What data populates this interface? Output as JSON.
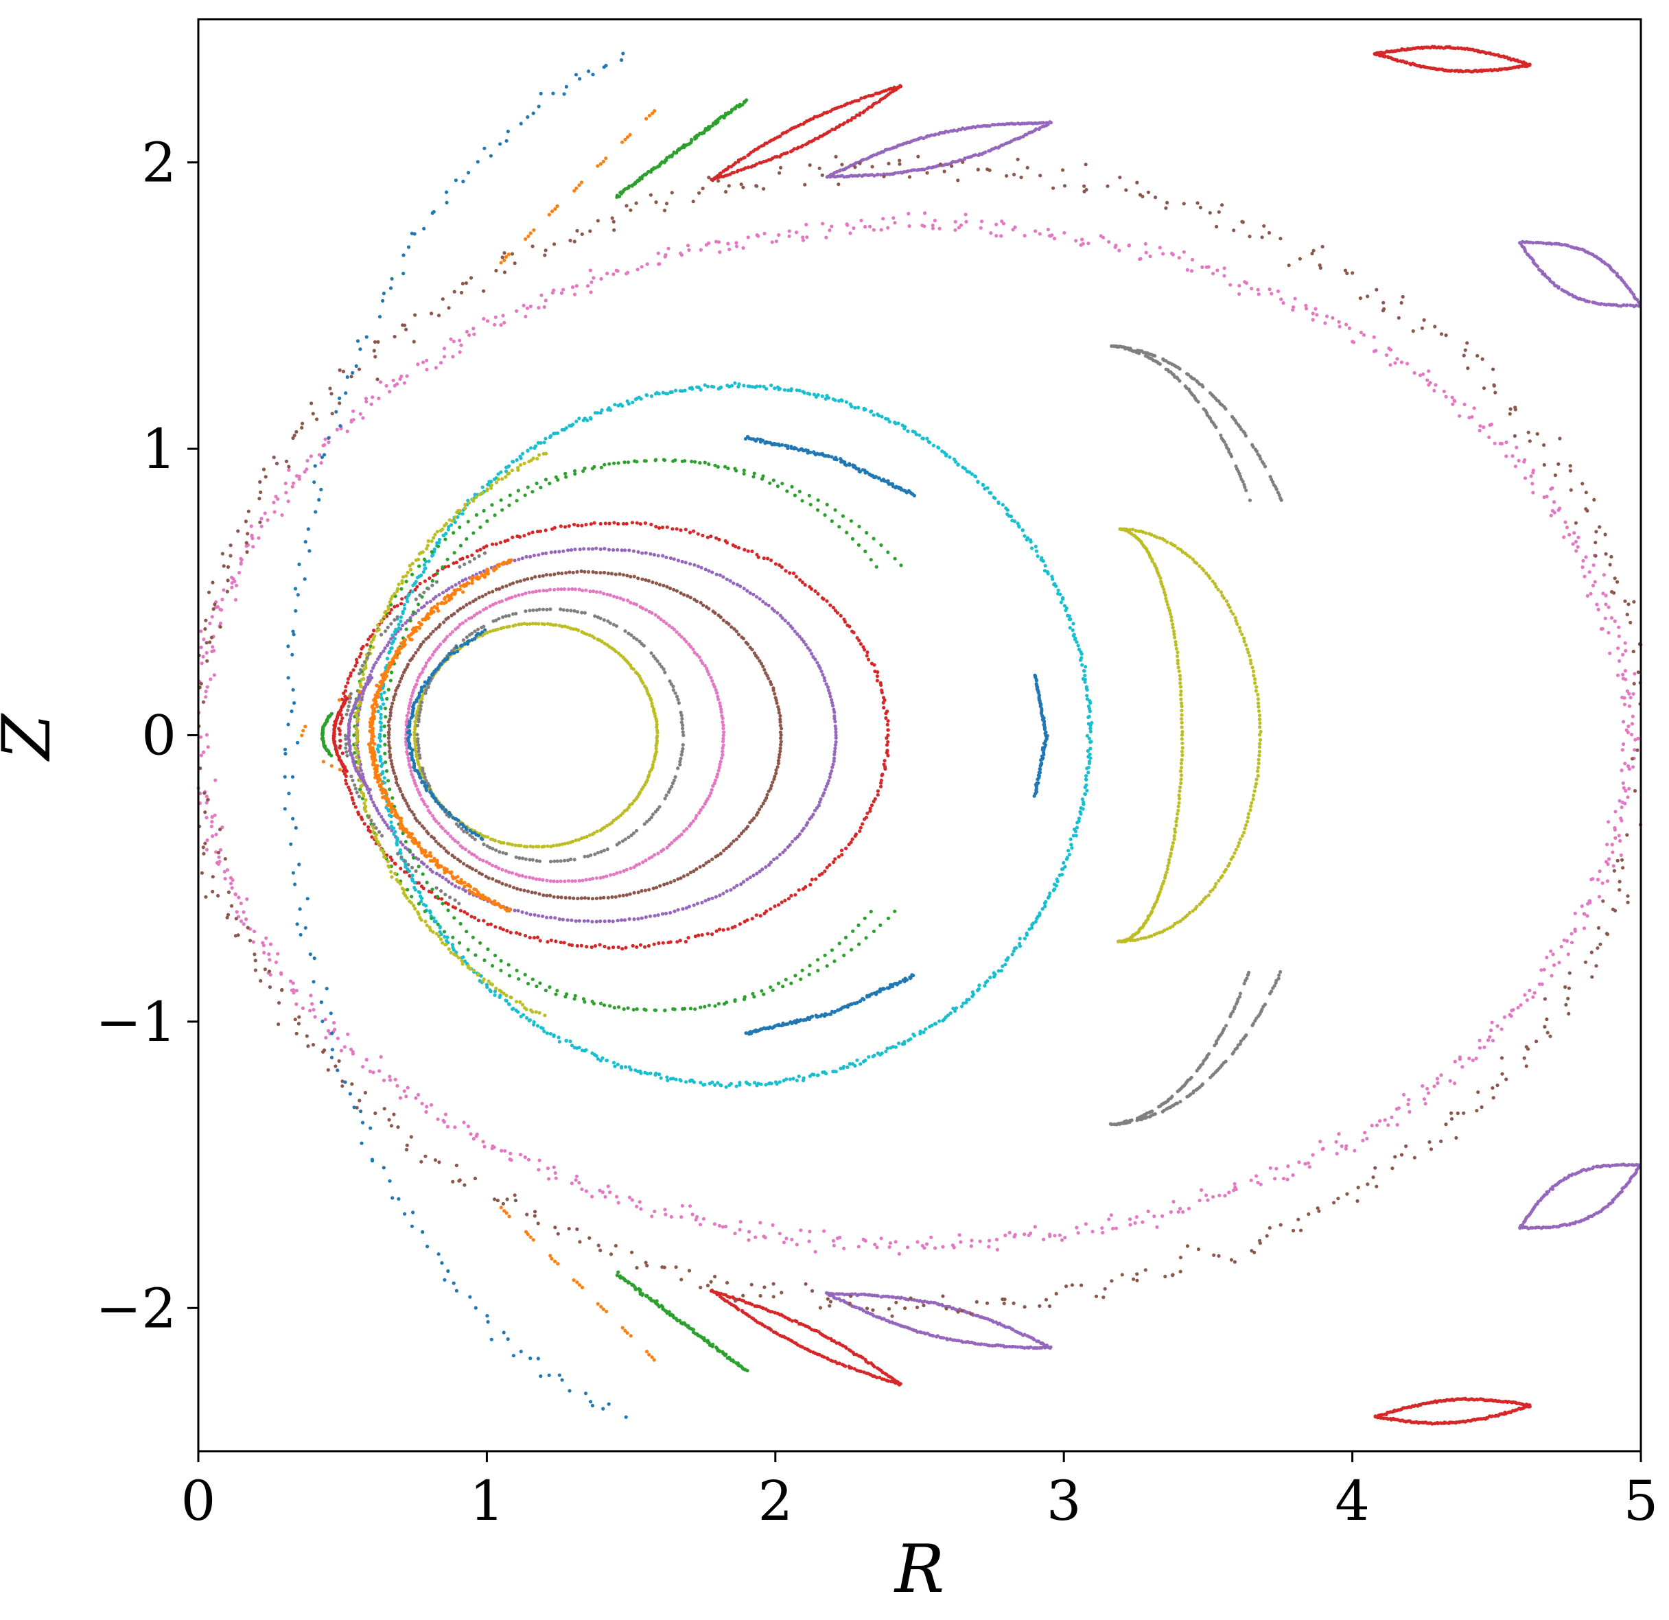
{
  "chart_data": {
    "type": "scatter",
    "title": "",
    "xlabel": "R",
    "ylabel": "Z",
    "xlim": [
      0,
      5
    ],
    "ylim": [
      -2.5,
      2.5
    ],
    "xticks": [
      0,
      1,
      2,
      3,
      4,
      5
    ],
    "yticks": [
      -2,
      -1,
      0,
      1,
      2
    ],
    "xtick_labels": [
      "0",
      "1",
      "2",
      "3",
      "4",
      "5"
    ],
    "ytick_labels": [
      "−2",
      "−1",
      "0",
      "1",
      "2"
    ],
    "grid": false,
    "legend": "none",
    "marker_size": "small dots",
    "palette": {
      "blue": "#1f77b4",
      "orange": "#ff7f0e",
      "green": "#2ca02c",
      "red": "#d62728",
      "purple": "#9467bd",
      "brown": "#8c564b",
      "pink": "#e377c2",
      "gray": "#7f7f7f",
      "olive": "#bcbd22",
      "cyan": "#17becf"
    },
    "series": [
      {
        "color": "#bcbd22",
        "kind": "ellipse",
        "c": [
          1.17,
          0.0
        ],
        "r": [
          0.42,
          0.39
        ],
        "deg": [
          0,
          360
        ],
        "n": 260
      },
      {
        "color": "#7f7f7f",
        "kind": "ellipse",
        "c": [
          1.22,
          0.0
        ],
        "r": [
          0.46,
          0.44
        ],
        "deg": [
          0,
          360
        ],
        "n": 240,
        "dash": [
          8,
          2
        ]
      },
      {
        "color": "#e377c2",
        "kind": "ellipse",
        "c": [
          1.27,
          0.0
        ],
        "r": [
          0.55,
          0.51
        ],
        "deg": [
          0,
          360
        ],
        "n": 280
      },
      {
        "color": "#8c564b",
        "kind": "ellipse",
        "c": [
          1.34,
          0.0
        ],
        "r": [
          0.68,
          0.57
        ],
        "deg": [
          0,
          360
        ],
        "n": 320
      },
      {
        "color": "#9467bd",
        "kind": "ellipse",
        "c": [
          1.38,
          0.0
        ],
        "r": [
          0.83,
          0.65
        ],
        "deg": [
          0,
          360
        ],
        "n": 360
      },
      {
        "color": "#d62728",
        "kind": "ellipse",
        "c": [
          1.44,
          0.0
        ],
        "r": [
          0.95,
          0.74
        ],
        "deg": [
          0,
          360
        ],
        "n": 380,
        "jitter": 0.008
      },
      {
        "color": "#17becf",
        "kind": "ellipse",
        "c": [
          1.86,
          0.0
        ],
        "r": [
          1.23,
          1.22
        ],
        "deg": [
          0,
          360
        ],
        "n": 760,
        "jitter": 0.012
      },
      {
        "color": "#2ca02c",
        "kind": "crescent",
        "c": [
          1.6,
          0.0
        ],
        "r": [
          1.06,
          0.96
        ],
        "deg": [
          38,
          322
        ],
        "inner": 0.9,
        "n": 300,
        "jitter": 0.004
      },
      {
        "color": "#bcbd22",
        "kind": "ellipse",
        "c": [
          1.86,
          0.0
        ],
        "r": [
          1.31,
          1.14
        ],
        "deg": [
          120,
          240
        ],
        "n": 220,
        "jitter": 0.01
      },
      {
        "color": "#1f77b4",
        "kind": "polyline",
        "pts": [
          [
            1.9,
            1.04
          ],
          [
            2.2,
            0.97
          ],
          [
            2.48,
            0.84
          ]
        ],
        "n": 120,
        "jitter": 0.008
      },
      {
        "color": "#1f77b4",
        "kind": "polyline",
        "pts": [
          [
            1.9,
            -1.04
          ],
          [
            2.2,
            -0.97
          ],
          [
            2.48,
            -0.84
          ]
        ],
        "n": 120,
        "jitter": 0.008
      },
      {
        "color": "#1f77b4",
        "kind": "ellipse",
        "c": [
          1.86,
          0.0
        ],
        "r": [
          1.13,
          0.57
        ],
        "deg": [
          140,
          220
        ],
        "n": 130,
        "jitter": 0.008
      },
      {
        "color": "#1f77b4",
        "kind": "polyline",
        "pts": [
          [
            2.9,
            0.21
          ],
          [
            2.94,
            0.0
          ],
          [
            2.9,
            -0.21
          ]
        ],
        "n": 80,
        "jitter": 0.006
      },
      {
        "color": "#ff7f0e",
        "kind": "ellipse",
        "c": [
          1.86,
          0.0
        ],
        "r": [
          1.26,
          0.78
        ],
        "deg": [
          128,
          232
        ],
        "n": 400,
        "jitter": 0.014
      },
      {
        "color": "#bcbd22",
        "kind": "crescent",
        "c": [
          3.19,
          0.0
        ],
        "r": [
          0.49,
          0.72
        ],
        "deg": [
          -90,
          90
        ],
        "inner": 0.45,
        "n": 320
      },
      {
        "color": "#7f7f7f",
        "kind": "crescent",
        "c": [
          3.14,
          0.0
        ],
        "r": [
          0.77,
          1.36
        ],
        "deg": [
          37,
          88
        ],
        "inner": 0.82,
        "n": 200,
        "dash": [
          10,
          3
        ]
      },
      {
        "color": "#7f7f7f",
        "kind": "crescent",
        "c": [
          3.14,
          0.0
        ],
        "r": [
          0.77,
          1.36
        ],
        "deg": [
          -88,
          -37
        ],
        "inner": 0.82,
        "n": 200,
        "dash": [
          10,
          3
        ]
      },
      {
        "color": "#9467bd",
        "kind": "lens",
        "a": [
          2.18,
          1.95
        ],
        "b": [
          2.96,
          2.14
        ],
        "w": 0.055,
        "n": 220
      },
      {
        "color": "#9467bd",
        "kind": "lens",
        "a": [
          2.18,
          -1.95
        ],
        "b": [
          2.96,
          -2.14
        ],
        "w": 0.055,
        "n": 220
      },
      {
        "color": "#d62728",
        "kind": "lens",
        "a": [
          1.78,
          1.94
        ],
        "b": [
          2.44,
          2.27
        ],
        "w": 0.035,
        "n": 180
      },
      {
        "color": "#d62728",
        "kind": "lens",
        "a": [
          1.78,
          -1.94
        ],
        "b": [
          2.44,
          -2.27
        ],
        "w": 0.035,
        "n": 180
      },
      {
        "color": "#d62728",
        "kind": "lens",
        "a": [
          4.08,
          2.38
        ],
        "b": [
          4.62,
          2.34
        ],
        "w": 0.04,
        "n": 200
      },
      {
        "color": "#d62728",
        "kind": "lens",
        "a": [
          4.08,
          -2.38
        ],
        "b": [
          4.62,
          -2.34
        ],
        "w": 0.04,
        "n": 200
      },
      {
        "color": "#9467bd",
        "kind": "lens",
        "a": [
          4.58,
          1.72
        ],
        "b": [
          5.0,
          1.5
        ],
        "w": 0.08,
        "n": 140
      },
      {
        "color": "#9467bd",
        "kind": "lens",
        "a": [
          4.58,
          -1.72
        ],
        "b": [
          5.0,
          -1.5
        ],
        "w": 0.08,
        "n": 140
      },
      {
        "color": "#2ca02c",
        "kind": "polyline",
        "pts": [
          [
            1.45,
            1.88
          ],
          [
            1.9,
            2.22
          ]
        ],
        "n": 110,
        "jitter": 0.008
      },
      {
        "color": "#2ca02c",
        "kind": "polyline",
        "pts": [
          [
            1.45,
            -1.88
          ],
          [
            1.9,
            -2.22
          ]
        ],
        "n": 110,
        "jitter": 0.008
      },
      {
        "color": "#ff7f0e",
        "kind": "polyline",
        "pts": [
          [
            1.05,
            1.65
          ],
          [
            1.6,
            2.2
          ]
        ],
        "n": 60,
        "dash": [
          4,
          5
        ]
      },
      {
        "color": "#ff7f0e",
        "kind": "polyline",
        "pts": [
          [
            1.05,
            -1.65
          ],
          [
            1.6,
            -2.2
          ]
        ],
        "n": 60,
        "dash": [
          4,
          5
        ]
      },
      {
        "color": "#e377c2",
        "kind": "ellipse",
        "c": [
          2.48,
          0.0
        ],
        "r": [
          2.48,
          1.78
        ],
        "deg": [
          0,
          360
        ],
        "n": 900,
        "jitter": 0.05
      },
      {
        "color": "#8c564b",
        "kind": "ellipse",
        "c": [
          2.5,
          0.0
        ],
        "r": [
          2.52,
          1.99
        ],
        "deg": [
          0,
          360
        ],
        "n": 560,
        "jitter": 0.07
      },
      {
        "color": "#1f77b4",
        "kind": "ellipse",
        "c": [
          1.86,
          0.0
        ],
        "r": [
          1.55,
          2.45
        ],
        "deg": [
          104,
          256
        ],
        "n": 150,
        "jitter": 0.04
      },
      {
        "color": "#d62728",
        "kind": "ellipse",
        "c": [
          1.86,
          0.0
        ],
        "r": [
          1.39,
          0.5
        ],
        "deg": [
          165,
          195
        ],
        "n": 60,
        "jitter": 0.004
      },
      {
        "color": "#9467bd",
        "kind": "ellipse",
        "c": [
          1.86,
          0.0
        ],
        "r": [
          1.34,
          0.58
        ],
        "deg": [
          160,
          200
        ],
        "n": 60,
        "jitter": 0.004
      },
      {
        "color": "#2ca02c",
        "kind": "ellipse",
        "c": [
          1.86,
          0.0
        ],
        "r": [
          1.43,
          0.35
        ],
        "deg": [
          168,
          192
        ],
        "n": 40,
        "jitter": 0.004
      },
      {
        "color": "#ff7f0e",
        "kind": "ellipse",
        "c": [
          1.86,
          0.0
        ],
        "r": [
          1.5,
          0.3
        ],
        "deg": [
          150,
          210
        ],
        "n": 20,
        "dash": [
          3,
          5
        ]
      },
      {
        "color": "#7f7f7f",
        "kind": "ellipse",
        "c": [
          1.86,
          0.0
        ],
        "r": [
          1.35,
          0.83
        ],
        "deg": [
          130,
          230
        ],
        "n": 100,
        "dash": [
          6,
          4
        ]
      }
    ]
  }
}
